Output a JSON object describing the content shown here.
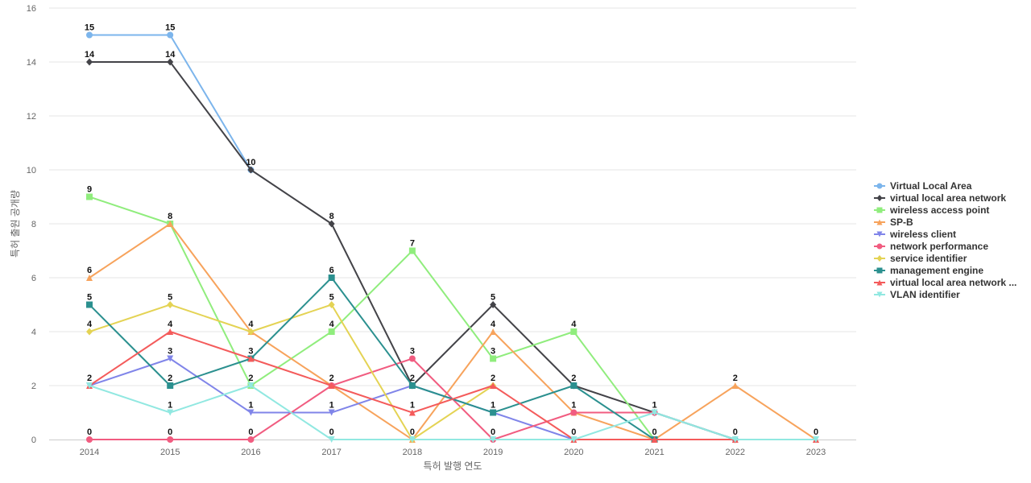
{
  "chart_data": {
    "type": "line",
    "title": "",
    "xlabel": "특허 발행 연도",
    "ylabel": "특허 출원 공개량",
    "x": [
      "2014",
      "2015",
      "2016",
      "2017",
      "2018",
      "2019",
      "2020",
      "2021",
      "2022",
      "2023"
    ],
    "ylim": [
      0,
      16
    ],
    "yticks": [
      0,
      2,
      4,
      6,
      8,
      10,
      12,
      14,
      16
    ],
    "grid": true,
    "legend_position": "right",
    "series": [
      {
        "name": "Virtual Local Area",
        "color": "#7cb5ec",
        "marker": "circle",
        "values": [
          15,
          15,
          10,
          null,
          null,
          null,
          null,
          1,
          0,
          null
        ]
      },
      {
        "name": "virtual local area network",
        "color": "#434348",
        "marker": "diamond",
        "values": [
          14,
          14,
          10,
          8,
          2,
          5,
          2,
          1,
          0,
          null
        ]
      },
      {
        "name": "wireless access point",
        "color": "#90ed7d",
        "marker": "square",
        "values": [
          9,
          8,
          2,
          4,
          7,
          3,
          4,
          0,
          null,
          null
        ]
      },
      {
        "name": "SP-B",
        "color": "#f7a35c",
        "marker": "triangle",
        "values": [
          6,
          8,
          4,
          2,
          0,
          4,
          1,
          0,
          2,
          0
        ]
      },
      {
        "name": "wireless client",
        "color": "#8085e9",
        "marker": "triangle-down",
        "values": [
          2,
          3,
          1,
          1,
          2,
          1,
          0,
          null,
          null,
          null
        ]
      },
      {
        "name": "network performance",
        "color": "#f15c80",
        "marker": "circle",
        "values": [
          0,
          0,
          0,
          2,
          3,
          0,
          1,
          1,
          null,
          null
        ]
      },
      {
        "name": "service identifier",
        "color": "#e4d354",
        "marker": "diamond",
        "values": [
          4,
          5,
          4,
          5,
          0,
          2,
          null,
          null,
          null,
          null
        ]
      },
      {
        "name": "management engine",
        "color": "#2b908f",
        "marker": "square",
        "values": [
          5,
          2,
          3,
          6,
          2,
          1,
          2,
          0,
          null,
          null
        ]
      },
      {
        "name": "virtual local area network ...",
        "color": "#f45b5b",
        "marker": "triangle",
        "values": [
          2,
          4,
          3,
          2,
          1,
          2,
          0,
          0,
          0,
          0
        ]
      },
      {
        "name": "VLAN identifier",
        "color": "#91e8e1",
        "marker": "triangle-down",
        "values": [
          2,
          1,
          2,
          0,
          0,
          0,
          0,
          1,
          0,
          0
        ]
      }
    ],
    "data_labels": [
      {
        "x": "2014",
        "y": 15,
        "text": "15"
      },
      {
        "x": "2014",
        "y": 14,
        "text": "14"
      },
      {
        "x": "2014",
        "y": 9,
        "text": "9"
      },
      {
        "x": "2014",
        "y": 6,
        "text": "6"
      },
      {
        "x": "2014",
        "y": 5,
        "text": "5"
      },
      {
        "x": "2014",
        "y": 4,
        "text": "4"
      },
      {
        "x": "2014",
        "y": 2,
        "text": "2"
      },
      {
        "x": "2014",
        "y": 0,
        "text": "0"
      },
      {
        "x": "2015",
        "y": 15,
        "text": "15"
      },
      {
        "x": "2015",
        "y": 14,
        "text": "14"
      },
      {
        "x": "2015",
        "y": 8,
        "text": "8"
      },
      {
        "x": "2015",
        "y": 5,
        "text": "5"
      },
      {
        "x": "2015",
        "y": 4,
        "text": "4"
      },
      {
        "x": "2015",
        "y": 3,
        "text": "3"
      },
      {
        "x": "2015",
        "y": 2,
        "text": "2"
      },
      {
        "x": "2015",
        "y": 1,
        "text": "1"
      },
      {
        "x": "2015",
        "y": 0,
        "text": "0"
      },
      {
        "x": "2016",
        "y": 10,
        "text": "10"
      },
      {
        "x": "2016",
        "y": 4,
        "text": "4"
      },
      {
        "x": "2016",
        "y": 3,
        "text": "3"
      },
      {
        "x": "2016",
        "y": 2,
        "text": "2"
      },
      {
        "x": "2016",
        "y": 1,
        "text": "1"
      },
      {
        "x": "2016",
        "y": 0,
        "text": "0"
      },
      {
        "x": "2017",
        "y": 8,
        "text": "8"
      },
      {
        "x": "2017",
        "y": 6,
        "text": "6"
      },
      {
        "x": "2017",
        "y": 5,
        "text": "5"
      },
      {
        "x": "2017",
        "y": 4,
        "text": "4"
      },
      {
        "x": "2017",
        "y": 2,
        "text": "2"
      },
      {
        "x": "2017",
        "y": 1,
        "text": "1"
      },
      {
        "x": "2017",
        "y": 0,
        "text": "0"
      },
      {
        "x": "2018",
        "y": 7,
        "text": "7"
      },
      {
        "x": "2018",
        "y": 3,
        "text": "3"
      },
      {
        "x": "2018",
        "y": 2,
        "text": "2"
      },
      {
        "x": "2018",
        "y": 1,
        "text": "1"
      },
      {
        "x": "2018",
        "y": 0,
        "text": "0"
      },
      {
        "x": "2019",
        "y": 5,
        "text": "5"
      },
      {
        "x": "2019",
        "y": 4,
        "text": "4"
      },
      {
        "x": "2019",
        "y": 3,
        "text": "3"
      },
      {
        "x": "2019",
        "y": 2,
        "text": "2"
      },
      {
        "x": "2019",
        "y": 1,
        "text": "1"
      },
      {
        "x": "2019",
        "y": 0,
        "text": "0"
      },
      {
        "x": "2020",
        "y": 4,
        "text": "4"
      },
      {
        "x": "2020",
        "y": 2,
        "text": "2"
      },
      {
        "x": "2020",
        "y": 1,
        "text": "1"
      },
      {
        "x": "2020",
        "y": 0,
        "text": "0"
      },
      {
        "x": "2021",
        "y": 1,
        "text": "1"
      },
      {
        "x": "2021",
        "y": 0,
        "text": "0"
      },
      {
        "x": "2022",
        "y": 2,
        "text": "2"
      },
      {
        "x": "2022",
        "y": 0,
        "text": "0"
      },
      {
        "x": "2023",
        "y": 0,
        "text": "0"
      }
    ]
  }
}
